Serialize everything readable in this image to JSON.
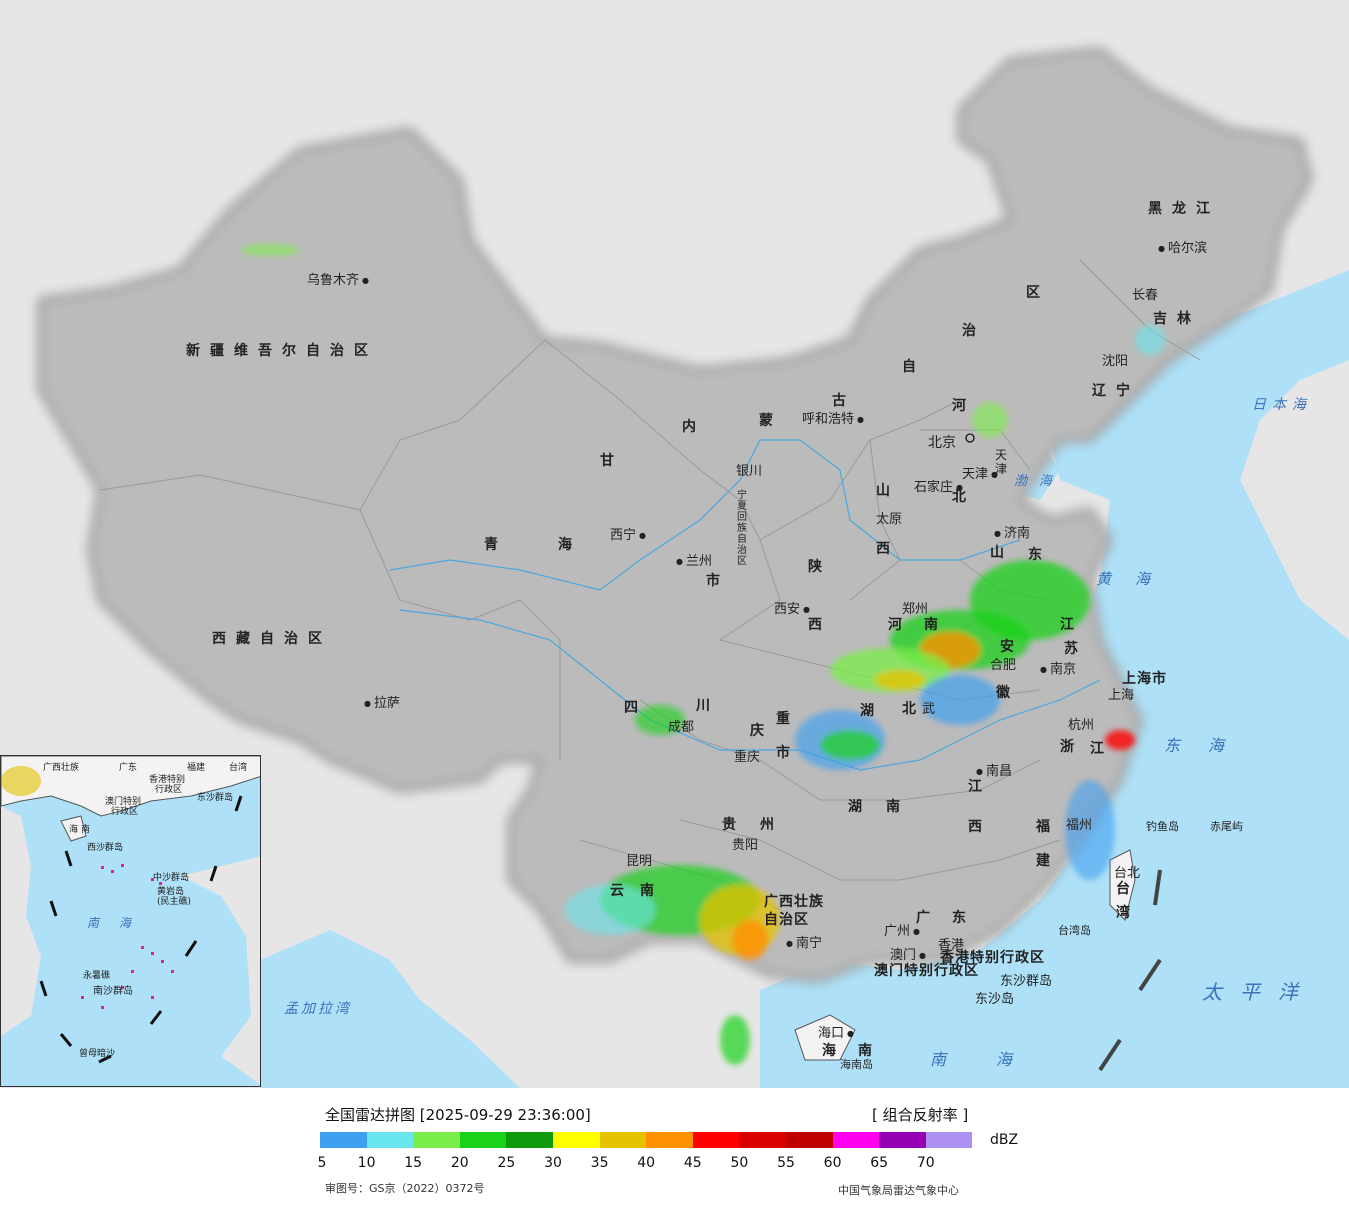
{
  "title": "全国雷达拼图 [2025-09-29 23:36:00]",
  "product": "[ 组合反射率 ]",
  "unit": "dBZ",
  "approval_no": "审图号：GS京（2022）0372号",
  "agency": "中国气象局雷达气象中心",
  "legend": {
    "values": [
      "5",
      "10",
      "15",
      "20",
      "25",
      "30",
      "35",
      "40",
      "45",
      "50",
      "55",
      "60",
      "65",
      "70"
    ],
    "colors": [
      "#3f9ff0",
      "#6ae6ef",
      "#7aee48",
      "#19d219",
      "#0d9a0d",
      "#ffff00",
      "#e6c200",
      "#ff9000",
      "#ff0000",
      "#d80000",
      "#c00000",
      "#ff00f0",
      "#9600b4",
      "#ad90f0"
    ]
  },
  "colors": {
    "land": "#f2f2f2",
    "foreign_land": "#e6e6e6",
    "sea": "#aee0f7",
    "border": "#111111"
  },
  "provinces": {
    "xinjiang": "新疆维吾尔自治区",
    "xizang": "西藏自治区",
    "qinghai": "青海",
    "gansu": "甘",
    "neimeng1": "内",
    "neimeng2": "蒙",
    "neimeng3": "古",
    "neimeng4": "自",
    "neimeng5": "治",
    "neimeng6": "区",
    "heilongjiang": "黑龙江",
    "jilin": "吉林",
    "liaoning": "辽宁",
    "hebei1": "河",
    "hebei2": "北",
    "shanxi1": "山",
    "shanxi2": "西",
    "shaanxi1": "陕",
    "shaanxi2": "西",
    "ningxia": "宁夏回族自治区",
    "shandong1": "山",
    "shandong2": "东",
    "henan1": "河",
    "henan2": "南",
    "jiangsu1": "江",
    "jiangsu2": "苏",
    "anhui1": "安",
    "anhui2": "徽",
    "hubei1": "湖",
    "hubei2": "北",
    "sichuan1": "四",
    "sichuan2": "川",
    "chongqing1": "重",
    "chongqing2": "庆",
    "chongqing3": "市",
    "gansu_shi": "市",
    "hunan1": "湖",
    "hunan2": "南",
    "jiangxi1": "江",
    "jiangxi2": "西",
    "zhejiang1": "浙",
    "zhejiang2": "江",
    "fujian1": "福",
    "fujian2": "建",
    "guizhou1": "贵",
    "guizhou2": "州",
    "yunnan1": "云",
    "yunnan2": "南",
    "guangxi1": "广西壮族",
    "guangxi2": "自治区",
    "guangdong1": "广",
    "guangdong2": "东",
    "hainan1": "海",
    "hainan2": "南",
    "taiwan1": "台",
    "taiwan2": "湾",
    "shanghai": "上海市",
    "tianjin1": "天",
    "tianjin2": "津"
  },
  "cities": {
    "urumqi": "乌鲁木齐",
    "lhasa": "拉萨",
    "xining": "西宁",
    "lanzhou": "兰州",
    "yinchuan": "银川",
    "hohhot": "呼和浩特",
    "beijing": "北京",
    "tianjin": "天津",
    "shijiazhuang": "石家庄",
    "taiyuan": "太原",
    "jinan": "济南",
    "zhengzhou": "郑州",
    "xian": "西安",
    "chengdu": "成都",
    "chongqing": "重庆",
    "wuhan": "武",
    "hefei": "合肥",
    "nanjing": "南京",
    "shanghai": "上海",
    "hangzhou": "杭州",
    "nanchang": "南昌",
    "fuzhou": "福州",
    "guiyang": "贵阳",
    "kunming": "昆明",
    "nanning": "南宁",
    "guangzhou": "广州",
    "macau": "澳门",
    "hongkong": "香港",
    "haikou": "海口",
    "taibei": "台北",
    "harbin": "哈尔滨",
    "changchun": "长春",
    "shenyang": "沈阳",
    "hk_sar": "香港特别行政区",
    "macau_sar": "澳门特别行政区",
    "dongsha_islands": "东沙群岛",
    "dongsha_island": "东沙岛",
    "diaoyu": "钓鱼岛",
    "chiwei": "赤尾屿",
    "hainan_island": "海南岛",
    "taiwan_island": "台湾岛"
  },
  "seas": {
    "bohai": "渤海",
    "huanghai": "黄海",
    "donghai": "东海",
    "nanhai": "南海",
    "taipingyang": "太平洋",
    "ribenhai": "日本海",
    "mengjialawan": "孟加拉湾"
  },
  "inset": {
    "guangxi": "广西壮族",
    "guangdong": "广东",
    "fujian": "福建",
    "taiwan": "台湾",
    "hk": "香港特别",
    "hk2": "行政区",
    "macau": "澳门特别",
    "macau2": "行政区",
    "dongsha": "东沙群岛",
    "hainan1": "海",
    "hainan2": "南",
    "xisha": "西沙群岛",
    "zhongsha": "中沙群岛",
    "huangyan": "黄岩岛",
    "huangyan2": "(民主礁)",
    "nanhai": "南海",
    "nansha": "南沙群岛",
    "yongshu": "永暑礁",
    "zengmu": "曾母暗沙"
  }
}
